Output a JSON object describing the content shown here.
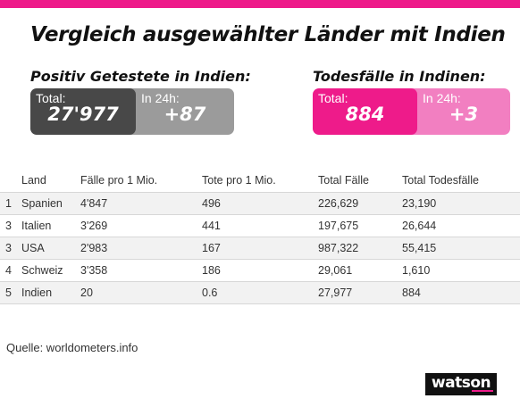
{
  "title": "Vergleich ausgewählter Länder mit Indien",
  "positive": {
    "heading": "Positiv Getestete in Indien:",
    "total_label": "Total:",
    "total_value": "27'977",
    "day_label": "In 24h:",
    "day_value": "+87"
  },
  "deaths": {
    "heading": "Todesfälle in Indinen:",
    "total_label": "Total:",
    "total_value": "884",
    "day_label": "In 24h:",
    "day_value": "+3"
  },
  "table": {
    "headers": [
      "",
      "Land",
      "Fälle pro 1 Mio.",
      "Tote pro 1 Mio.",
      "Total Fälle",
      "Total Todesfälle"
    ],
    "rows": [
      [
        "1",
        "Spanien",
        "4'847",
        "496",
        "226,629",
        "23,190"
      ],
      [
        "3",
        "Italien",
        "3'269",
        "441",
        "197,675",
        "26,644"
      ],
      [
        "3",
        "USA",
        "2'983",
        "167",
        "987,322",
        "55,415"
      ],
      [
        "4",
        "Schweiz",
        "3'358",
        "186",
        "29,061",
        "1,610"
      ],
      [
        "5",
        "Indien",
        "20",
        "0.6",
        "27,977",
        "884"
      ]
    ]
  },
  "source": "Quelle: worldometers.info",
  "logo": "watson",
  "colors": {
    "accent": "#ee1b8a",
    "accent_light": "#f27fc1",
    "dark_gray": "#484848",
    "light_gray": "#9b9b9b"
  }
}
